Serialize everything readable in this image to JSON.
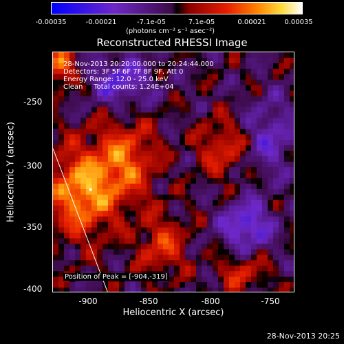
{
  "colorbar": {
    "ticks": [
      "-0.00035",
      "-0.00021",
      "-7.1e-05",
      "7.1e-05",
      "0.00021",
      "0.00035"
    ],
    "units": "(photons cm⁻² s⁻¹ asec⁻²)",
    "range": [
      -0.00035,
      0.00035
    ]
  },
  "title": "Reconstructed RHESSI Image",
  "info": {
    "time": "28-Nov-2013 20:20:00.000 to 20:24:44.000",
    "detectors": "Detectors: 3F 5F 6F 7F 8F 9F, Att 0",
    "energy": "Energy Range: 12.0 - 25.0 keV",
    "clean": "Clean     Total counts: 1.24E+04"
  },
  "peak": "Position of Peak = [-904,-319]",
  "axes": {
    "ylabel": "Heliocentric Y (arcsec)",
    "xlabel": "Heliocentric X (arcsec)",
    "yticks": [
      "-250",
      "-300",
      "-350",
      "-400"
    ],
    "xticks": [
      "-900",
      "-850",
      "-800",
      "-750"
    ],
    "xlim": [
      -935,
      -735
    ],
    "ylim": [
      -405,
      -205
    ]
  },
  "footer_date": "28-Nov-2013 20:25",
  "chart_data": {
    "type": "heatmap",
    "title": "Reconstructed RHESSI Image",
    "xlabel": "Heliocentric X (arcsec)",
    "ylabel": "Heliocentric Y (arcsec)",
    "xlim": [
      -935,
      -735
    ],
    "ylim": [
      -405,
      -205
    ],
    "value_range": [
      -0.00035,
      0.00035
    ],
    "peak": [
      -904,
      -319
    ]
  }
}
